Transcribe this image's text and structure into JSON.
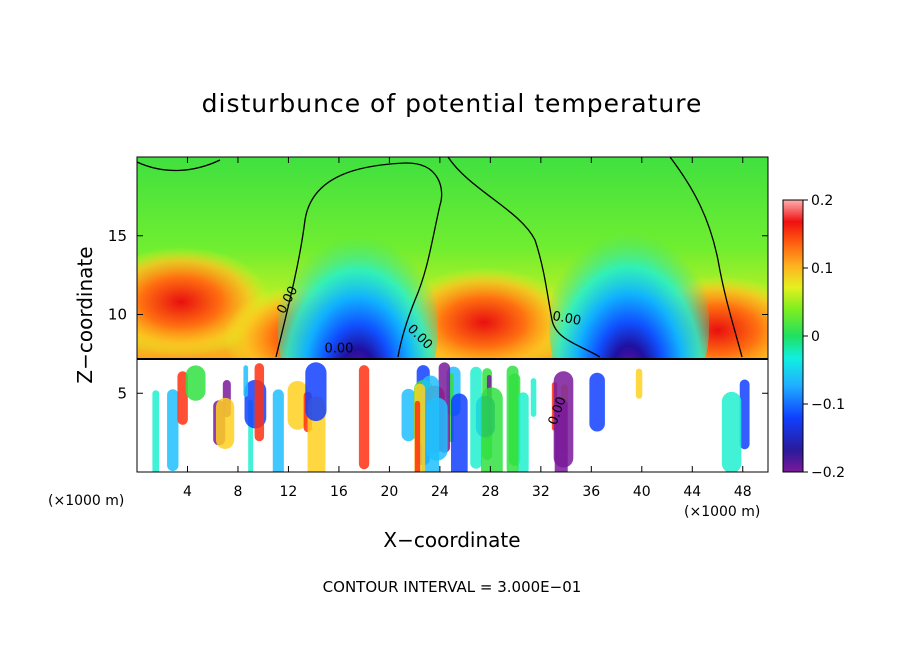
{
  "chart_data": {
    "type": "heatmap",
    "title": "disturbunce of potential temperature",
    "xlabel": "X−coordinate",
    "ylabel": "Z−coordinate",
    "x_unit_left": "(×1000 m)",
    "x_unit_right": "(×1000 m)",
    "x_ticks": [
      "4",
      "8",
      "12",
      "16",
      "20",
      "24",
      "28",
      "32",
      "36",
      "40",
      "44",
      "48"
    ],
    "x_tick_values": [
      4,
      8,
      12,
      16,
      20,
      24,
      28,
      32,
      36,
      40,
      44,
      48
    ],
    "y_ticks": [
      "5",
      "10",
      "15"
    ],
    "y_tick_values": [
      5,
      10,
      15
    ],
    "xlim": [
      0,
      50
    ],
    "ylim": [
      0,
      20
    ],
    "footer": "CONTOUR INTERVAL = 3.000E−01",
    "colorbar": {
      "ticks": [
        "0.2",
        "0.1",
        "0",
        "−0.1",
        "−0.2"
      ],
      "tick_values": [
        0.2,
        0.1,
        0,
        -0.1,
        -0.2
      ],
      "range": [
        -0.2,
        0.2
      ]
    },
    "contour_labels": [
      {
        "text": "0.00",
        "x": 12.2,
        "y": 10.8,
        "angle": -62
      },
      {
        "text": "0.00",
        "x": 16.0,
        "y": 7.6,
        "angle": 0
      },
      {
        "text": "0.00",
        "x": 22.2,
        "y": 8.4,
        "angle": 45
      },
      {
        "text": "0.00",
        "x": 34.0,
        "y": 9.5,
        "angle": 10
      },
      {
        "text": "0.00",
        "x": 33.6,
        "y": 3.8,
        "angle": -70
      }
    ],
    "warm_blobs": [
      {
        "x": 3.5,
        "y": 10.8,
        "value": 0.09
      },
      {
        "x": 14.0,
        "y": 8.5,
        "value": 0.15
      },
      {
        "x": 27.5,
        "y": 9.5,
        "value": 0.17
      },
      {
        "x": 46.0,
        "y": 9.0,
        "value": 0.12
      }
    ],
    "cold_plumes": [
      {
        "x": 17.5,
        "y": 9.8,
        "value": -0.2
      },
      {
        "x": 39.0,
        "y": 10.0,
        "value": -0.2
      }
    ]
  }
}
